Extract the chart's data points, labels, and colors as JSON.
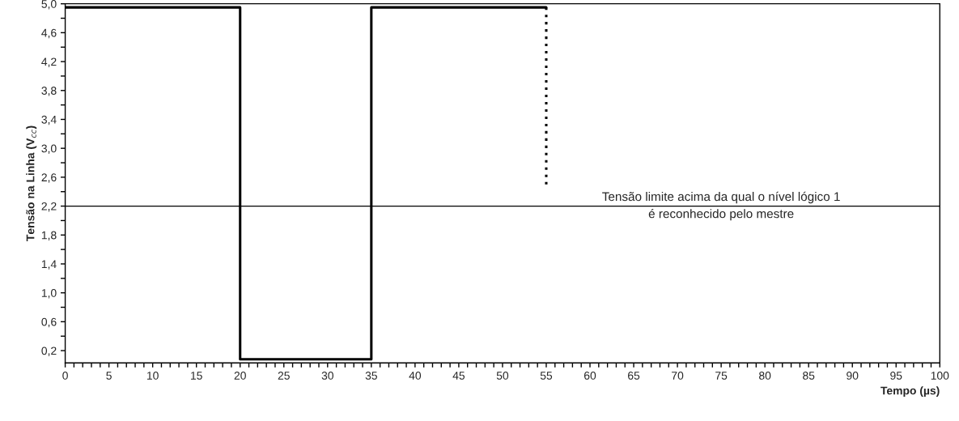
{
  "chart_data": {
    "type": "line",
    "xlabel": "Tempo (µs)",
    "ylabel": "Tensão na Linha (V$_{cc}$)",
    "series": [
      {
        "color": "#000000",
        "x": [
          0,
          20,
          20,
          35,
          35,
          55
        ],
        "values": [
          4.95,
          4.95,
          0.08,
          0.08,
          4.95,
          4.95
        ],
        "line_style": "solid"
      },
      {
        "color": "#000000",
        "x": [
          55,
          55
        ],
        "values": [
          4.95,
          2.5
        ],
        "line_style": "dotted"
      }
    ],
    "ref_lines": [
      {
        "axis": "y",
        "value": 2.2,
        "label": "Tensão limite acima da qual o nível lógico 1\né reconhecido pelo mestre",
        "color": "#000000",
        "line_style": "solid"
      }
    ],
    "xlim": [
      0,
      100
    ],
    "ylim": [
      0.03,
      5.0
    ],
    "xticks": [
      0,
      {
        "value": 1,
        "label": null
      },
      {
        "value": 2,
        "label": null
      },
      {
        "value": 3,
        "label": null
      },
      {
        "value": 4,
        "label": null
      },
      5,
      {
        "value": 6,
        "label": null
      },
      {
        "value": 7,
        "label": null
      },
      {
        "value": 8,
        "label": null
      },
      {
        "value": 9,
        "label": null
      },
      10,
      {
        "value": 11,
        "label": null
      },
      {
        "value": 12,
        "label": null
      },
      {
        "value": 13,
        "label": null
      },
      {
        "value": 14,
        "label": null
      },
      15,
      {
        "value": 16,
        "label": null
      },
      {
        "value": 17,
        "label": null
      },
      {
        "value": 18,
        "label": null
      },
      {
        "value": 19,
        "label": null
      },
      20,
      {
        "value": 21,
        "label": null
      },
      {
        "value": 22,
        "label": null
      },
      {
        "value": 23,
        "label": null
      },
      {
        "value": 24,
        "label": null
      },
      25,
      {
        "value": 26,
        "label": null
      },
      {
        "value": 27,
        "label": null
      },
      {
        "value": 28,
        "label": null
      },
      {
        "value": 29,
        "label": null
      },
      30,
      {
        "value": 31,
        "label": null
      },
      {
        "value": 32,
        "label": null
      },
      {
        "value": 33,
        "label": null
      },
      {
        "value": 34,
        "label": null
      },
      35,
      {
        "value": 36,
        "label": null
      },
      {
        "value": 37,
        "label": null
      },
      {
        "value": 38,
        "label": null
      },
      {
        "value": 39,
        "label": null
      },
      40,
      {
        "value": 41,
        "label": null
      },
      {
        "value": 42,
        "label": null
      },
      {
        "value": 43,
        "label": null
      },
      {
        "value": 44,
        "label": null
      },
      45,
      {
        "value": 46,
        "label": null
      },
      {
        "value": 47,
        "label": null
      },
      {
        "value": 48,
        "label": null
      },
      {
        "value": 49,
        "label": null
      },
      50,
      {
        "value": 51,
        "label": null
      },
      {
        "value": 52,
        "label": null
      },
      {
        "value": 53,
        "label": null
      },
      {
        "value": 54,
        "label": null
      },
      55,
      {
        "value": 56,
        "label": null
      },
      {
        "value": 57,
        "label": null
      },
      {
        "value": 58,
        "label": null
      },
      {
        "value": 59,
        "label": null
      },
      60,
      {
        "value": 61,
        "label": null
      },
      {
        "value": 62,
        "label": null
      },
      {
        "value": 63,
        "label": null
      },
      {
        "value": 64,
        "label": null
      },
      65,
      {
        "value": 66,
        "label": null
      },
      {
        "value": 67,
        "label": null
      },
      {
        "value": 68,
        "label": null
      },
      {
        "value": 69,
        "label": null
      },
      70,
      {
        "value": 71,
        "label": null
      },
      {
        "value": 72,
        "label": null
      },
      {
        "value": 73,
        "label": null
      },
      {
        "value": 74,
        "label": null
      },
      75,
      {
        "value": 76,
        "label": null
      },
      {
        "value": 77,
        "label": null
      },
      {
        "value": 78,
        "label": null
      },
      {
        "value": 79,
        "label": null
      },
      80,
      {
        "value": 81,
        "label": null
      },
      {
        "value": 82,
        "label": null
      },
      {
        "value": 83,
        "label": null
      },
      {
        "value": 84,
        "label": null
      },
      85,
      {
        "value": 86,
        "label": null
      },
      {
        "value": 87,
        "label": null
      },
      {
        "value": 88,
        "label": null
      },
      {
        "value": 89,
        "label": null
      },
      90,
      {
        "value": 91,
        "label": null
      },
      {
        "value": 92,
        "label": null
      },
      {
        "value": 93,
        "label": null
      },
      {
        "value": 94,
        "label": null
      },
      95,
      {
        "value": 96,
        "label": null
      },
      {
        "value": 97,
        "label": null
      },
      {
        "value": 98,
        "label": null
      },
      {
        "value": 99,
        "label": null
      },
      100
    ],
    "yticks": [
      {
        "value": 0.2,
        "label": "0,2"
      },
      {
        "value": 0.4,
        "label": null
      },
      {
        "value": 0.6,
        "label": "0,6"
      },
      {
        "value": 0.8,
        "label": null
      },
      {
        "value": 1.0,
        "label": "1,0"
      },
      {
        "value": 1.2,
        "label": null
      },
      {
        "value": 1.4,
        "label": "1,4"
      },
      {
        "value": 1.6,
        "label": null
      },
      {
        "value": 1.8,
        "label": "1,8"
      },
      {
        "value": 2.0,
        "label": null
      },
      {
        "value": 2.2,
        "label": "2,2"
      },
      {
        "value": 2.4,
        "label": null
      },
      {
        "value": 2.6,
        "label": "2,6"
      },
      {
        "value": 2.8,
        "label": null
      },
      {
        "value": 3.0,
        "label": "3,0"
      },
      {
        "value": 3.2,
        "label": null
      },
      {
        "value": 3.4,
        "label": "3,4"
      },
      {
        "value": 3.6,
        "label": null
      },
      {
        "value": 3.8,
        "label": "3,8"
      },
      {
        "value": 4.0,
        "label": null
      },
      {
        "value": 4.2,
        "label": "4,2"
      },
      {
        "value": 4.4,
        "label": null
      },
      {
        "value": 4.6,
        "label": "4,6"
      },
      {
        "value": 4.8,
        "label": null
      },
      {
        "value": 5.0,
        "label": "5,0"
      }
    ],
    "grid": false
  }
}
